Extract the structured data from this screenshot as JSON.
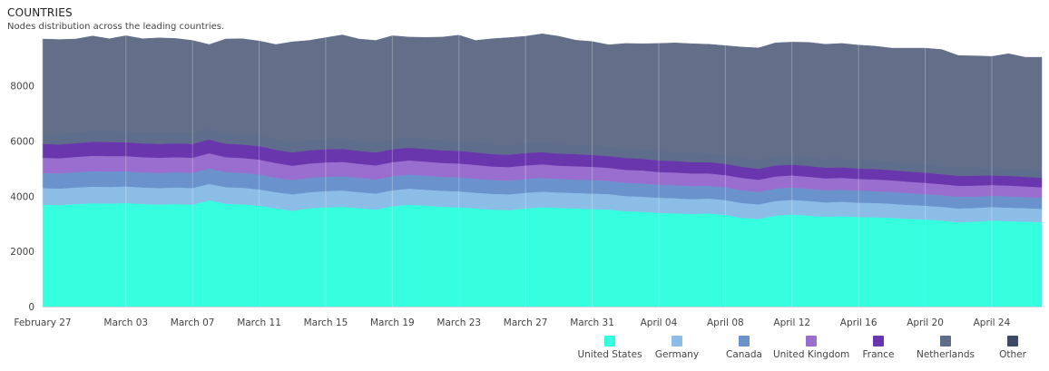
{
  "header": {
    "title": "COUNTRIES",
    "subtitle": "Nodes distribution across the leading countries."
  },
  "chart_data": {
    "type": "area",
    "stacked": true,
    "ylim": [
      0,
      9800
    ],
    "y_ticks": [
      0,
      2000,
      4000,
      6000,
      8000
    ],
    "grid": true,
    "legend_position": "bottom-right",
    "x_tick_labels": [
      "February 27",
      "March 03",
      "March 07",
      "March 11",
      "March 15",
      "March 19",
      "March 23",
      "March 27",
      "March 31",
      "April 04",
      "April 08",
      "April 12",
      "April 16",
      "April 20",
      "April 24"
    ],
    "x": [
      "February 27",
      "February 28",
      "February 29",
      "March 01",
      "March 02",
      "March 03",
      "March 04",
      "March 05",
      "March 06",
      "March 07",
      "March 08",
      "March 09",
      "March 10",
      "March 11",
      "March 12",
      "March 13",
      "March 14",
      "March 15",
      "March 16",
      "March 17",
      "March 18",
      "March 19",
      "March 20",
      "March 21",
      "March 22",
      "March 23",
      "March 24",
      "March 25",
      "March 26",
      "March 27",
      "March 28",
      "March 29",
      "March 30",
      "March 31",
      "April 01",
      "April 02",
      "April 03",
      "April 04",
      "April 05",
      "April 06",
      "April 07",
      "April 08",
      "April 09",
      "April 10",
      "April 11",
      "April 12",
      "April 13",
      "April 14",
      "April 15",
      "April 16",
      "April 17",
      "April 18",
      "April 19",
      "April 20",
      "April 21",
      "April 22",
      "April 23",
      "April 24",
      "April 25",
      "April 26",
      "April 27"
    ],
    "series": [
      {
        "name": "United States",
        "color": "#35ffde",
        "values": [
          3700,
          3680,
          3720,
          3750,
          3740,
          3760,
          3720,
          3700,
          3720,
          3700,
          3850,
          3730,
          3710,
          3660,
          3560,
          3480,
          3560,
          3600,
          3620,
          3570,
          3520,
          3640,
          3700,
          3660,
          3620,
          3600,
          3560,
          3520,
          3500,
          3560,
          3600,
          3580,
          3560,
          3540,
          3520,
          3460,
          3440,
          3400,
          3380,
          3360,
          3380,
          3320,
          3220,
          3180,
          3300,
          3340,
          3300,
          3260,
          3280,
          3250,
          3240,
          3220,
          3180,
          3160,
          3120,
          3060,
          3080,
          3120,
          3100,
          3080,
          3060
        ]
      },
      {
        "name": "Germany",
        "color": "#8cbde6",
        "values": [
          600,
          600,
          600,
          600,
          600,
          600,
          600,
          600,
          600,
          600,
          600,
          600,
          600,
          590,
          590,
          590,
          590,
          590,
          590,
          580,
          580,
          580,
          580,
          580,
          580,
          580,
          570,
          570,
          570,
          570,
          570,
          560,
          560,
          560,
          560,
          550,
          550,
          550,
          550,
          540,
          540,
          540,
          540,
          530,
          530,
          530,
          530,
          520,
          520,
          520,
          520,
          510,
          510,
          500,
          500,
          500,
          500,
          490,
          490,
          490,
          490
        ]
      },
      {
        "name": "Canada",
        "color": "#6a93cd",
        "values": [
          550,
          550,
          560,
          560,
          560,
          550,
          550,
          550,
          550,
          550,
          560,
          550,
          540,
          540,
          530,
          520,
          520,
          520,
          520,
          520,
          510,
          510,
          510,
          510,
          510,
          510,
          510,
          500,
          500,
          500,
          500,
          490,
          490,
          490,
          480,
          480,
          480,
          470,
          470,
          470,
          460,
          460,
          460,
          450,
          450,
          450,
          450,
          440,
          440,
          440,
          430,
          430,
          430,
          420,
          420,
          420,
          410,
          410,
          410,
          400,
          400
        ]
      },
      {
        "name": "United Kingdom",
        "color": "#9a6ecf",
        "values": [
          550,
          550,
          550,
          560,
          560,
          550,
          550,
          550,
          550,
          550,
          550,
          540,
          540,
          540,
          530,
          520,
          520,
          520,
          520,
          510,
          510,
          510,
          510,
          510,
          500,
          500,
          500,
          490,
          490,
          490,
          490,
          480,
          480,
          480,
          470,
          470,
          470,
          460,
          460,
          460,
          450,
          450,
          450,
          440,
          440,
          440,
          430,
          430,
          430,
          420,
          420,
          420,
          410,
          410,
          400,
          400,
          400,
          390,
          390,
          390,
          380
        ]
      },
      {
        "name": "France",
        "color": "#6a36ad",
        "values": [
          500,
          500,
          500,
          510,
          510,
          500,
          500,
          500,
          500,
          500,
          500,
          490,
          490,
          490,
          480,
          480,
          480,
          480,
          470,
          470,
          470,
          470,
          460,
          460,
          460,
          460,
          450,
          450,
          450,
          450,
          440,
          440,
          440,
          430,
          430,
          430,
          420,
          420,
          420,
          410,
          410,
          410,
          400,
          400,
          400,
          390,
          390,
          390,
          380,
          380,
          380,
          370,
          370,
          370,
          360,
          360,
          360,
          350,
          350,
          350,
          340
        ]
      },
      {
        "name": "Netherlands",
        "color": "#5f6d8c",
        "values": [
          400,
          400,
          400,
          400,
          400,
          400,
          400,
          400,
          400,
          400,
          400,
          390,
          390,
          390,
          380,
          380,
          380,
          380,
          380,
          370,
          370,
          370,
          370,
          370,
          370,
          370,
          360,
          360,
          360,
          360,
          360,
          350,
          350,
          350,
          350,
          350,
          340,
          340,
          340,
          340,
          330,
          330,
          330,
          330,
          320,
          320,
          320,
          320,
          310,
          310,
          310,
          310,
          300,
          300,
          300,
          300,
          290,
          290,
          290,
          290,
          280
        ]
      },
      {
        "name": "Other",
        "color": "#636e89",
        "values": [
          3400,
          3400,
          3370,
          3430,
          3340,
          3460,
          3390,
          3440,
          3400,
          3350,
          3040,
          3400,
          3440,
          3420,
          3430,
          3630,
          3600,
          3660,
          3750,
          3680,
          3690,
          3740,
          3640,
          3670,
          3730,
          3820,
          3700,
          3820,
          3880,
          3870,
          3930,
          3900,
          3780,
          3760,
          3680,
          3800,
          3830,
          3900,
          3940,
          3950,
          3940,
          3950,
          4010,
          4050,
          4120,
          4120,
          4160,
          4150,
          4180,
          4160,
          4140,
          4110,
          4170,
          4210,
          4220,
          4060,
          4050,
          4020,
          4140,
          4040,
          4090
        ]
      }
    ]
  }
}
